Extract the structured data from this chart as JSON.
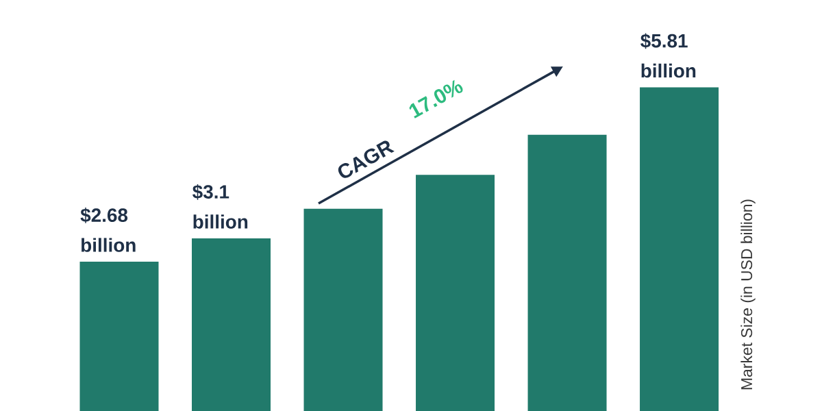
{
  "chart_data": {
    "type": "bar",
    "ylabel": "Market Size (in USD billion)",
    "categories": [
      null,
      null,
      null,
      null,
      null,
      null
    ],
    "values": [
      2.68,
      3.1,
      3.63,
      4.24,
      4.96,
      5.81
    ],
    "value_labels": [
      "$2.68 billion",
      "$3.1 billion",
      null,
      null,
      null,
      "$5.81 billion"
    ],
    "color": "#217a6b",
    "annotations": [
      "CAGR",
      "17.0%"
    ]
  }
}
